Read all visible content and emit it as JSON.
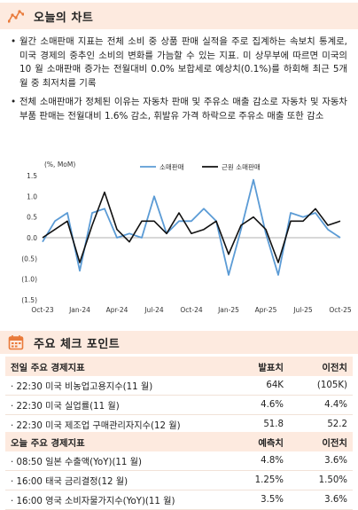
{
  "header_today": {
    "title": "오늘의 차트",
    "icon": "line-chart-icon",
    "accent": "#e97a3a"
  },
  "bullets": [
    "월간 소매판매 지표는 전체 소비 중 상품 판매 실적을 주로 집계하는 속보치 통계로, 미국 경제의 중추인 소비의 변화를 가늠할 수 있는 지표. 미 상무부에 따르면 미국의 10 월 소매판매 증가는 전월대비 0.0% 보합세로 예상치(0.1%)를 하회해 최근 5개월 중 최저치를 기록",
    "전체 소매판매가 정체된 이유는 자동차 판매 및 주유소 매출 감소로 자동차 및 자동차 부품 판매는 전월대비 1.6% 감소, 휘발유 가격 하락으로 주유소 매출 또한 감소"
  ],
  "chart_data": {
    "type": "line",
    "unit_label": "(%, MoM)",
    "x": [
      "Oct-23",
      "Nov-23",
      "Dec-23",
      "Jan-24",
      "Feb-24",
      "Mar-24",
      "Apr-24",
      "May-24",
      "Jun-24",
      "Jul-24",
      "Aug-24",
      "Sep-24",
      "Oct-24",
      "Nov-24",
      "Dec-24",
      "Jan-25",
      "Feb-25",
      "Mar-25",
      "Apr-25",
      "May-25",
      "Jun-25",
      "Jul-25",
      "Aug-25",
      "Sep-25",
      "Oct-25"
    ],
    "x_tick_labels": [
      "Oct-23",
      "Jan-24",
      "Apr-24",
      "Jul-24",
      "Oct-24",
      "Jan-25",
      "Apr-25",
      "Jul-25",
      "Oct-25"
    ],
    "y_tick_labels": [
      "1.5",
      "1.0",
      "0.5",
      "0.0",
      "(0.5)",
      "(1.0)",
      "(1.5)"
    ],
    "ylim": [
      -1.5,
      1.5
    ],
    "legend_position": "top-right",
    "series": [
      {
        "name": "소매판매",
        "color": "#5b9bd5",
        "values": [
          -0.1,
          0.4,
          0.6,
          -0.8,
          0.6,
          0.7,
          0.0,
          0.1,
          0.0,
          1.0,
          0.1,
          0.4,
          0.4,
          0.7,
          0.4,
          -0.9,
          0.2,
          1.4,
          0.1,
          -0.9,
          0.6,
          0.5,
          0.6,
          0.2,
          0.0
        ]
      },
      {
        "name": "근원 소매판매",
        "color": "#111111",
        "values": [
          0.0,
          0.2,
          0.4,
          -0.6,
          0.3,
          1.1,
          0.2,
          -0.1,
          0.4,
          0.4,
          0.1,
          0.6,
          0.1,
          0.2,
          0.4,
          -0.4,
          0.3,
          0.5,
          0.2,
          -0.6,
          0.4,
          0.4,
          0.7,
          0.3,
          0.4
        ]
      }
    ]
  },
  "header_check": {
    "title": "주요 체크 포인트",
    "icon": "calendar-icon",
    "accent": "#e97a3a"
  },
  "prev_table": {
    "headers": [
      "전일 주요 경제지표",
      "발표치",
      "이전치"
    ],
    "rows": [
      [
        "· 22:30 미국 비농업고용지수(11 월)",
        "64K",
        "(105K)"
      ],
      [
        "· 22:30 미국 실업률(11 월)",
        "4.6%",
        "4.4%"
      ],
      [
        "· 22:30 미국 제조업 구매관리자지수(12 월)",
        "51.8",
        "52.2"
      ]
    ]
  },
  "today_table": {
    "headers": [
      "오늘 주요 경제지표",
      "예측치",
      "이전치"
    ],
    "rows": [
      [
        "· 08:50 일본 수출액(YoY)(11 월)",
        "4.8%",
        "3.6%"
      ],
      [
        "· 16:00 태국 금리결정(12 월)",
        "1.25%",
        "1.50%"
      ],
      [
        "· 16:00 영국 소비자물가지수(YoY)(11 월)",
        "3.5%",
        "3.6%"
      ]
    ]
  }
}
